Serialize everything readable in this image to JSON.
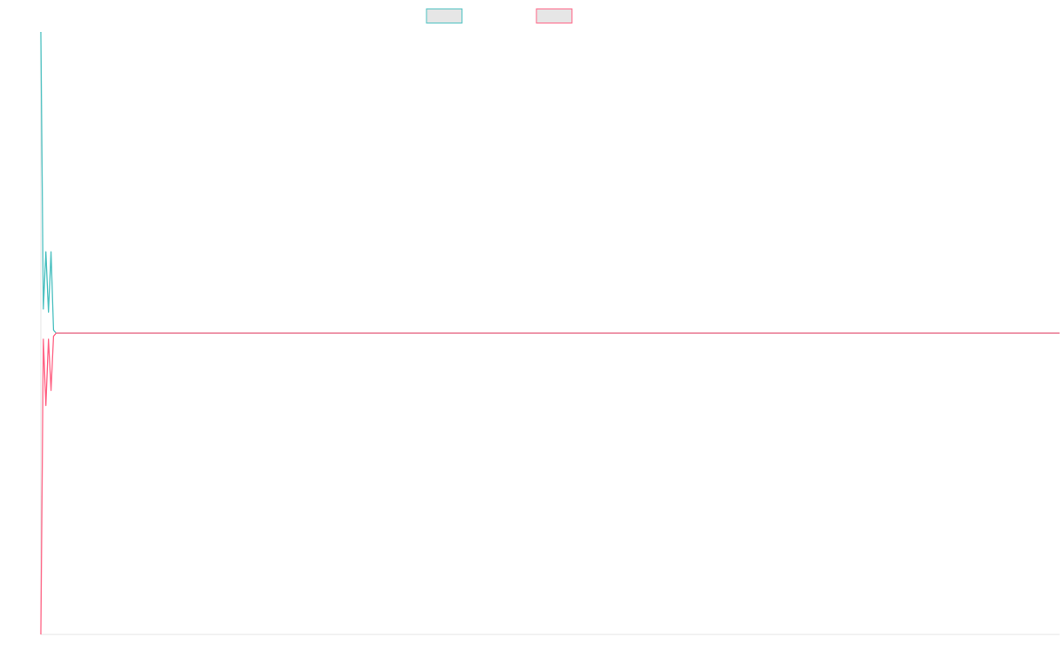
{
  "chart_data": {
    "type": "line",
    "title": "",
    "xlabel": "",
    "ylabel": "",
    "legend": {
      "placement": "top-center",
      "entries": [
        "",
        ""
      ]
    },
    "grid": false,
    "ylim": [
      -1,
      1
    ],
    "series": [
      {
        "color": "#4bc0c0",
        "legend_fill": "#e6e6e6",
        "values": [
          1.0,
          0.08,
          0.27,
          0.07,
          0.27,
          0.01
        ]
      },
      {
        "color": "#ff6384",
        "legend_fill": "#e6e6e6",
        "values": [
          -1.0,
          -0.02,
          -0.24,
          -0.02,
          -0.19,
          -0.01
        ]
      }
    ],
    "total_points": 399,
    "tail_value": 0
  }
}
